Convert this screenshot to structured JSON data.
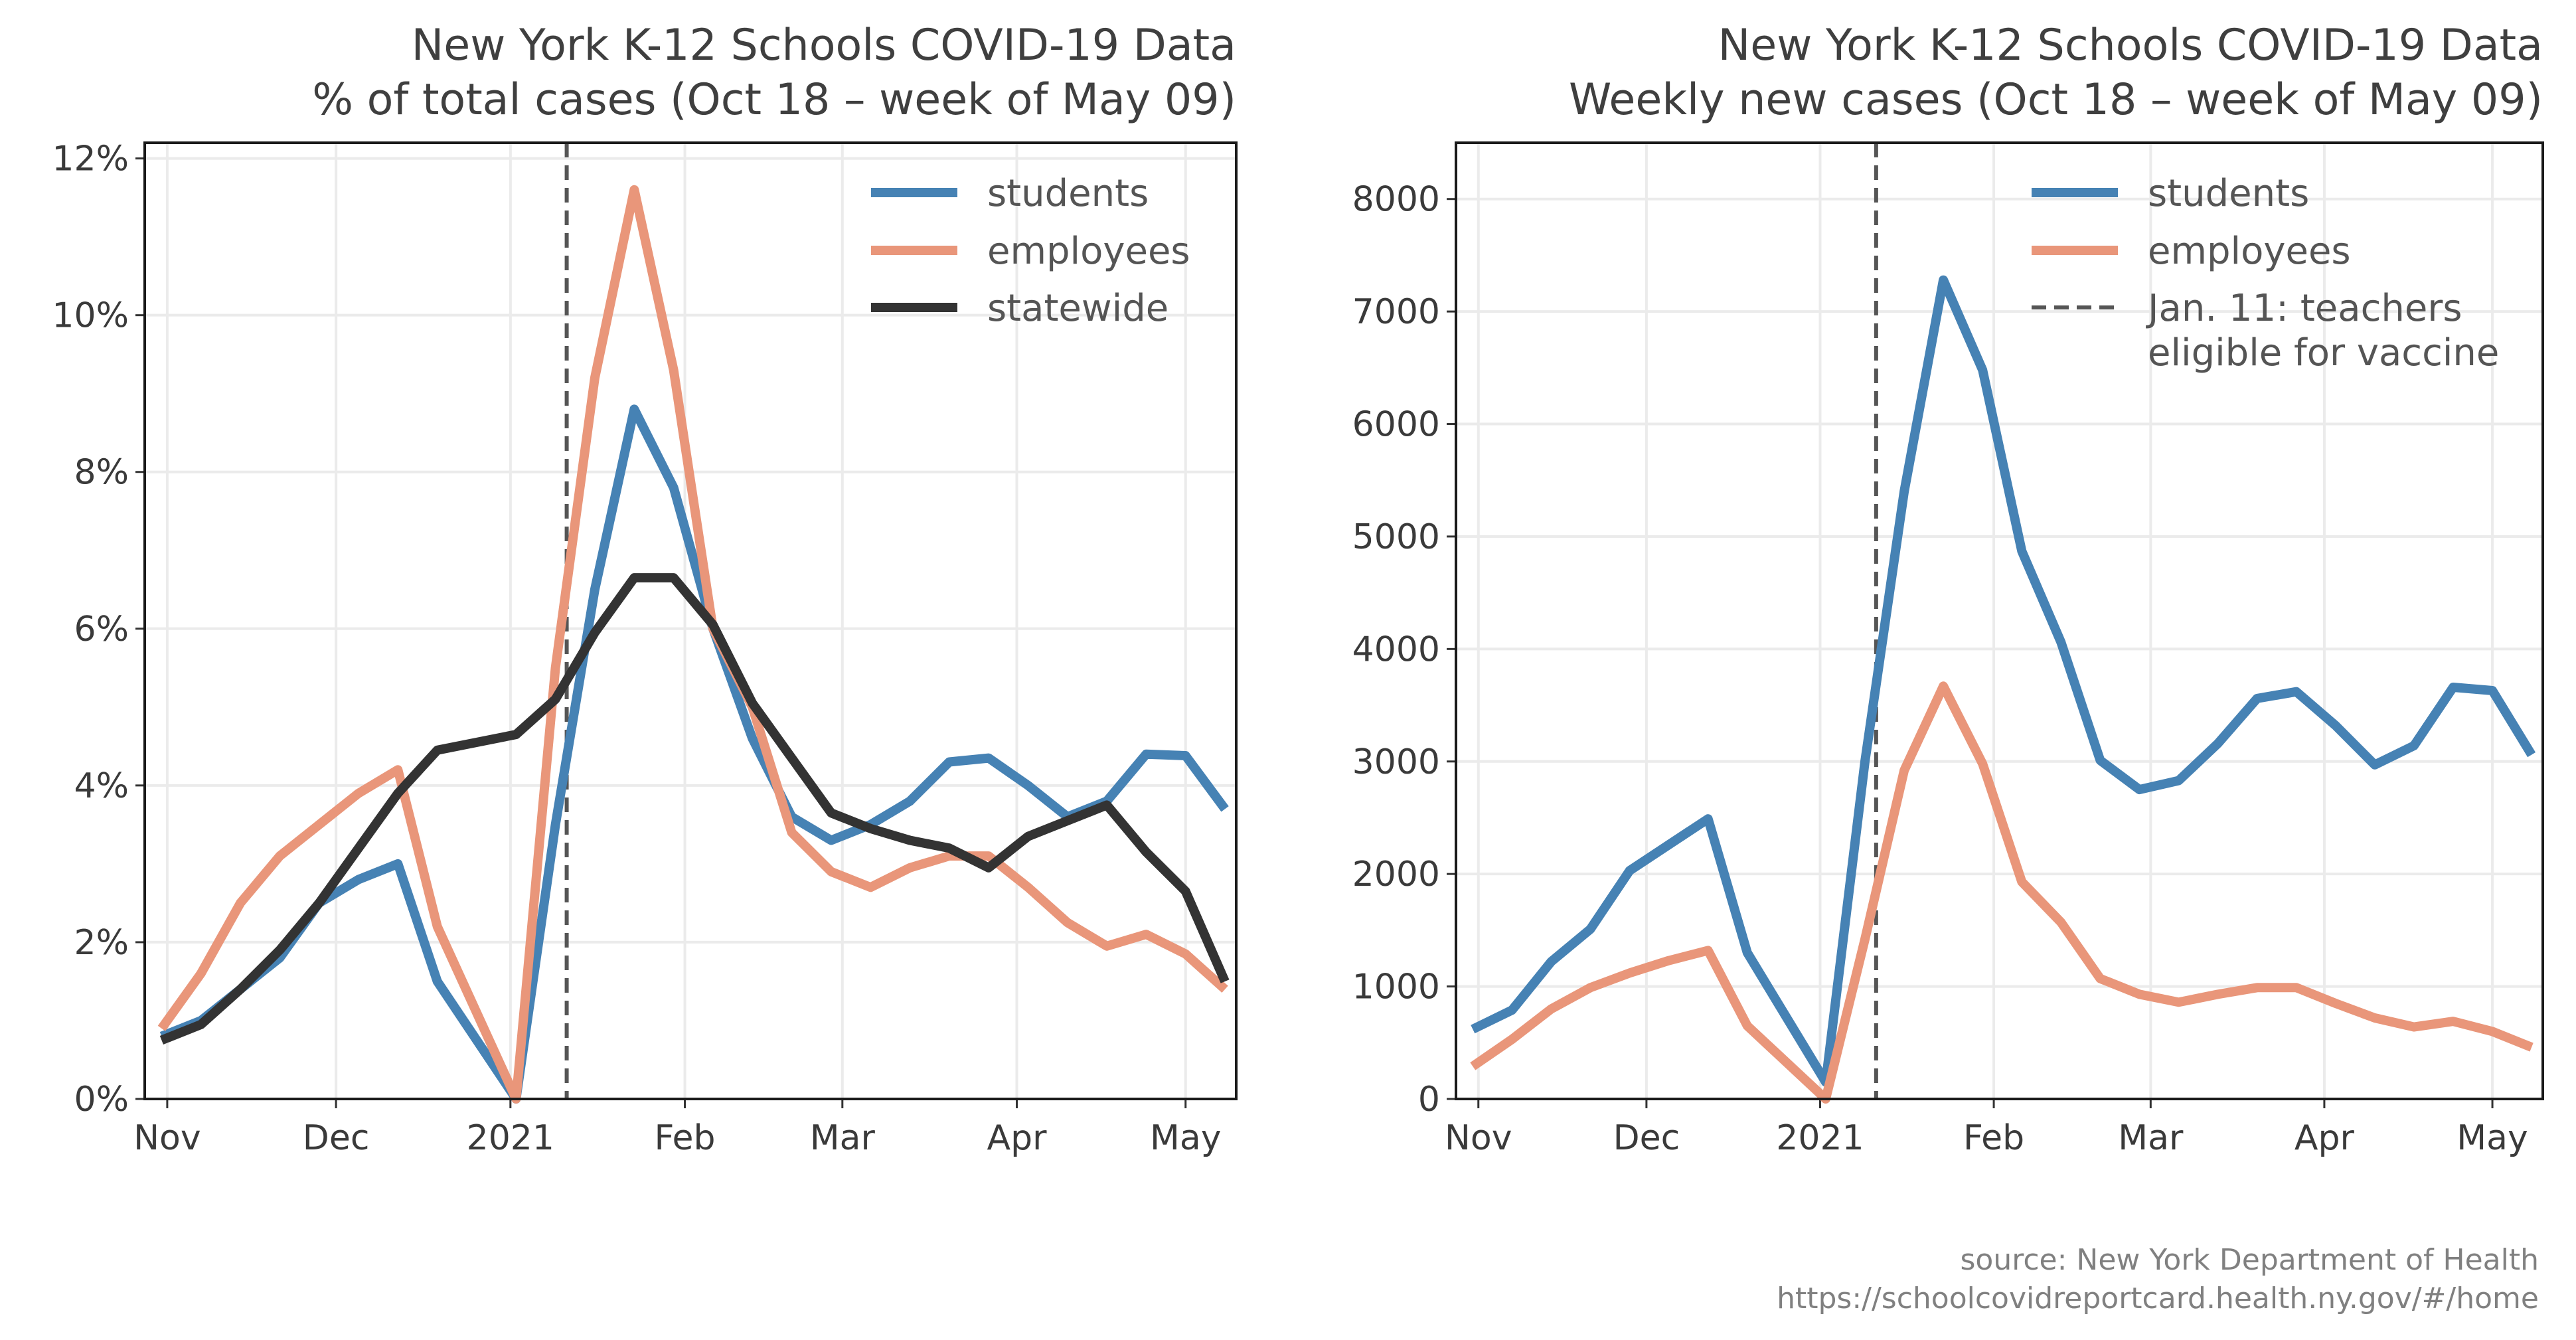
{
  "colors": {
    "students": "#4682b4",
    "employees": "#e9967a",
    "statewide": "#333333",
    "vline": "#555555"
  },
  "source": {
    "line1": "source: New York Department of Health",
    "line2": "https://schoolcovidreportcard.health.ny.gov/#/home"
  },
  "chart_data": [
    {
      "type": "line",
      "title": "New York K-12 Schools COVID-19 Data",
      "subtitle": "% of total cases (Oct 18 – week of May 09)",
      "xlabel": "",
      "ylabel": "",
      "x": [
        "2020-10-31",
        "2020-11-07",
        "2020-11-14",
        "2020-11-21",
        "2020-11-28",
        "2020-12-05",
        "2020-12-12",
        "2020-12-19",
        "2021-01-02",
        "2021-01-09",
        "2021-01-16",
        "2021-01-23",
        "2021-01-30",
        "2021-02-06",
        "2021-02-13",
        "2021-02-20",
        "2021-02-27",
        "2021-03-06",
        "2021-03-13",
        "2021-03-20",
        "2021-03-27",
        "2021-04-03",
        "2021-04-10",
        "2021-04-17",
        "2021-04-24",
        "2021-05-01",
        "2021-05-08"
      ],
      "x_ticks": [
        "Nov",
        "Dec",
        "2021",
        "Feb",
        "Mar",
        "Apr",
        "May"
      ],
      "x_tick_dates": [
        "2020-11-01",
        "2020-12-01",
        "2021-01-01",
        "2021-02-01",
        "2021-03-01",
        "2021-04-01",
        "2021-05-01"
      ],
      "ylim": [
        0,
        12.2
      ],
      "y_ticks": [
        0,
        2,
        4,
        6,
        8,
        10,
        12
      ],
      "y_tick_labels": [
        "0%",
        "2%",
        "4%",
        "6%",
        "8%",
        "10%",
        "12%"
      ],
      "vline_date": "2021-01-11",
      "legend_position": "top-right",
      "series": [
        {
          "name": "students",
          "color": "#4682b4",
          "values": [
            0.8,
            1.0,
            1.4,
            1.8,
            2.5,
            2.8,
            3.0,
            1.5,
            0.0,
            3.5,
            6.5,
            8.8,
            7.8,
            6.0,
            4.6,
            3.6,
            3.3,
            3.5,
            3.8,
            4.3,
            4.35,
            4.0,
            3.6,
            3.8,
            4.4,
            4.38,
            3.7
          ]
        },
        {
          "name": "employees",
          "color": "#e9967a",
          "values": [
            0.9,
            1.6,
            2.5,
            3.1,
            3.5,
            3.9,
            4.2,
            2.2,
            0.0,
            5.5,
            9.2,
            11.6,
            9.3,
            6.0,
            5.0,
            3.4,
            2.9,
            2.7,
            2.95,
            3.1,
            3.1,
            2.7,
            2.25,
            1.95,
            2.1,
            1.85,
            1.4
          ]
        },
        {
          "name": "statewide",
          "color": "#333333",
          "values": [
            0.75,
            0.95,
            1.4,
            1.9,
            2.5,
            3.2,
            3.9,
            4.45,
            4.65,
            5.1,
            5.95,
            6.65,
            6.65,
            6.05,
            5.05,
            4.35,
            3.65,
            3.45,
            3.3,
            3.2,
            2.95,
            3.35,
            3.55,
            3.75,
            3.15,
            2.65,
            1.5
          ]
        }
      ],
      "legend": [
        {
          "label": "students",
          "color": "#4682b4",
          "style": "solid"
        },
        {
          "label": "employees",
          "color": "#e9967a",
          "style": "solid"
        },
        {
          "label": "statewide",
          "color": "#333333",
          "style": "solid"
        }
      ]
    },
    {
      "type": "line",
      "title": "New York K-12 Schools COVID-19 Data",
      "subtitle": "Weekly new cases (Oct 18 – week of May 09)",
      "xlabel": "",
      "ylabel": "",
      "x": [
        "2020-10-31",
        "2020-11-07",
        "2020-11-14",
        "2020-11-21",
        "2020-11-28",
        "2020-12-05",
        "2020-12-12",
        "2020-12-19",
        "2021-01-02",
        "2021-01-09",
        "2021-01-16",
        "2021-01-23",
        "2021-01-30",
        "2021-02-06",
        "2021-02-13",
        "2021-02-20",
        "2021-02-27",
        "2021-03-06",
        "2021-03-13",
        "2021-03-20",
        "2021-03-27",
        "2021-04-03",
        "2021-04-10",
        "2021-04-17",
        "2021-04-24",
        "2021-05-01",
        "2021-05-08"
      ],
      "x_ticks": [
        "Nov",
        "Dec",
        "2021",
        "Feb",
        "Mar",
        "Apr",
        "May"
      ],
      "x_tick_dates": [
        "2020-11-01",
        "2020-12-01",
        "2021-01-01",
        "2021-02-01",
        "2021-03-01",
        "2021-04-01",
        "2021-05-01"
      ],
      "ylim": [
        0,
        8500
      ],
      "y_ticks": [
        0,
        1000,
        2000,
        3000,
        4000,
        5000,
        6000,
        7000,
        8000
      ],
      "y_tick_labels": [
        "0",
        "1000",
        "2000",
        "3000",
        "4000",
        "5000",
        "6000",
        "7000",
        "8000"
      ],
      "vline_date": "2021-01-11",
      "legend_position": "top-right",
      "series": [
        {
          "name": "students",
          "color": "#4682b4",
          "values": [
            620,
            790,
            1220,
            1510,
            2030,
            2260,
            2490,
            1300,
            150,
            3000,
            5400,
            7280,
            6480,
            4870,
            4060,
            3010,
            2750,
            2830,
            3160,
            3560,
            3620,
            3320,
            2970,
            3140,
            3660,
            3630,
            3060
          ]
        },
        {
          "name": "employees",
          "color": "#e9967a",
          "values": [
            290,
            530,
            800,
            990,
            1120,
            1230,
            1320,
            650,
            0,
            1420,
            2920,
            3670,
            2980,
            1930,
            1570,
            1070,
            930,
            860,
            930,
            990,
            990,
            850,
            720,
            640,
            690,
            600,
            460
          ]
        }
      ],
      "legend": [
        {
          "label": "students",
          "color": "#4682b4",
          "style": "solid"
        },
        {
          "label": "employees",
          "color": "#e9967a",
          "style": "solid"
        },
        {
          "label": "Jan. 11: teachers",
          "label2": "eligible for vaccine",
          "color": "#555555",
          "style": "dashed"
        }
      ]
    }
  ]
}
